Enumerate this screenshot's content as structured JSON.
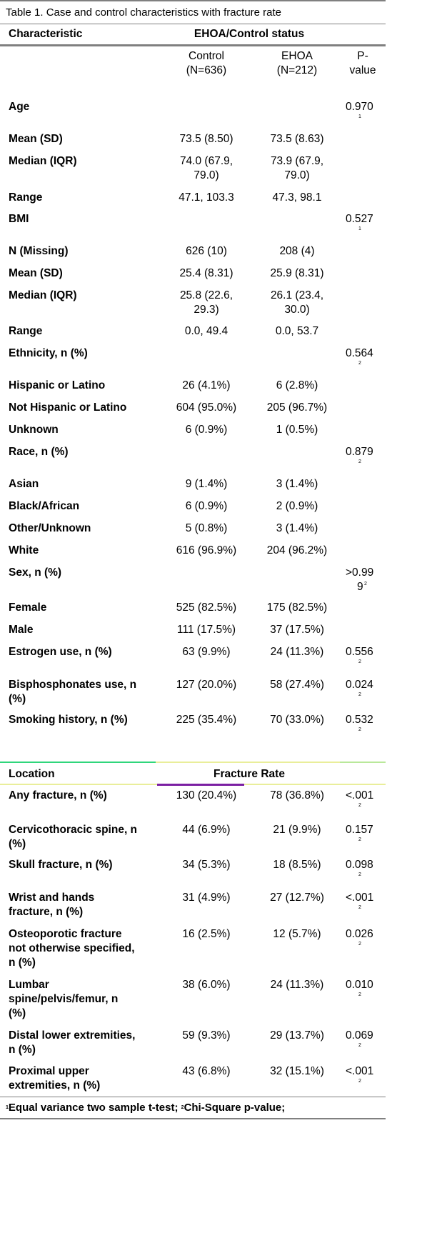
{
  "caption": "Table 1. Case and control characteristics with fracture rate",
  "header": {
    "characteristic": "Characteristic",
    "status": "EHOA/Control status",
    "control_line1": "Control",
    "control_line2": "(N=636)",
    "ehoa_line1": "EHOA",
    "ehoa_line2": "(N=212)",
    "p_line1": "P-",
    "p_line2": "value"
  },
  "sections": {
    "age": {
      "label": "Age",
      "p": "0.970",
      "note": "1"
    },
    "age_mean": {
      "label": "Mean (SD)",
      "control": "73.5 (8.50)",
      "ehoa": "73.5 (8.63)"
    },
    "age_median": {
      "label": "Median (IQR)",
      "control1": "74.0 (67.9,",
      "control2": "79.0)",
      "ehoa1": "73.9 (67.9,",
      "ehoa2": "79.0)"
    },
    "age_range": {
      "label": "Range",
      "control": "47.1, 103.3",
      "ehoa": "47.3, 98.1"
    },
    "bmi": {
      "label": "BMI",
      "p": "0.527",
      "note": "1"
    },
    "bmi_n": {
      "label": "N (Missing)",
      "control": "626 (10)",
      "ehoa": "208 (4)"
    },
    "bmi_mean": {
      "label": "Mean (SD)",
      "control": "25.4 (8.31)",
      "ehoa": "25.9 (8.31)"
    },
    "bmi_median": {
      "label": "Median (IQR)",
      "control1": "25.8 (22.6,",
      "control2": "29.3)",
      "ehoa1": "26.1 (23.4,",
      "ehoa2": "30.0)"
    },
    "bmi_range": {
      "label": "Range",
      "control": "0.0, 49.4",
      "ehoa": "0.0, 53.7"
    },
    "ethnicity": {
      "label": "Ethnicity, n (%)",
      "p": "0.564",
      "note": "2"
    },
    "eth_hisp": {
      "label": "Hispanic or Latino",
      "control": "26 (4.1%)",
      "ehoa": "6 (2.8%)"
    },
    "eth_nothisp": {
      "label": "Not Hispanic or Latino",
      "control": "604 (95.0%)",
      "ehoa": "205 (96.7%)"
    },
    "eth_unknown": {
      "label": "Unknown",
      "control": "6 (0.9%)",
      "ehoa": "1 (0.5%)"
    },
    "race": {
      "label": "Race, n (%)",
      "p": "0.879",
      "note": "2"
    },
    "race_asian": {
      "label": "Asian",
      "control": "9 (1.4%)",
      "ehoa": "3 (1.4%)"
    },
    "race_black": {
      "label": "Black/African",
      "control": "6 (0.9%)",
      "ehoa": "2 (0.9%)"
    },
    "race_other": {
      "label": "Other/Unknown",
      "control": "5 (0.8%)",
      "ehoa": "3 (1.4%)"
    },
    "race_white": {
      "label": "White",
      "control": "616 (96.9%)",
      "ehoa": "204 (96.2%)"
    },
    "sex": {
      "label": "Sex, n (%)",
      "p1": ">0.99",
      "p2": "9",
      "note": "2"
    },
    "sex_female": {
      "label": "Female",
      "control": "525 (82.5%)",
      "ehoa": "175 (82.5%)"
    },
    "sex_male": {
      "label": "Male",
      "control": "111 (17.5%)",
      "ehoa": "37 (17.5%)"
    },
    "estrogen": {
      "label": "Estrogen use, n (%)",
      "control": "63 (9.9%)",
      "ehoa": "24 (11.3%)",
      "p": "0.556",
      "note": "2"
    },
    "bisph": {
      "label1": "Bisphosphonates use, n",
      "label2": "(%)",
      "control": "127 (20.0%)",
      "ehoa": "58 (27.4%)",
      "p": "0.024",
      "note": "2"
    },
    "smoking": {
      "label": "Smoking history, n (%)",
      "control": "225 (35.4%)",
      "ehoa": "70 (33.0%)",
      "p": "0.532",
      "note": "2"
    }
  },
  "fracture_header": {
    "location": "Location",
    "rate": "Fracture Rate"
  },
  "fractures": {
    "any": {
      "label1": "Any fracture, n (%)",
      "control": "130 (20.4%)",
      "ehoa": "78 (36.8%)",
      "p": "<.001",
      "note": "2"
    },
    "cervico": {
      "label1": "Cervicothoracic spine, n",
      "label2": "(%)",
      "control": "44 (6.9%)",
      "ehoa": "21 (9.9%)",
      "p": "0.157",
      "note": "2"
    },
    "skull": {
      "label1": "Skull fracture, n (%)",
      "control": "34 (5.3%)",
      "ehoa": "18 (8.5%)",
      "p": "0.098",
      "note": "2"
    },
    "wrist": {
      "label1": "Wrist and hands",
      "label2": "fracture, n (%)",
      "control": "31 (4.9%)",
      "ehoa": "27 (12.7%)",
      "p": "<.001",
      "note": "2"
    },
    "osteo": {
      "label1": "Osteoporotic fracture",
      "label2": "not otherwise specified,",
      "label3": "n (%)",
      "control": "16 (2.5%)",
      "ehoa": "12 (5.7%)",
      "p": "0.026",
      "note": "2"
    },
    "lumbar": {
      "label1": "Lumbar",
      "label2": "spine/pelvis/femur, n",
      "label3": "(%)",
      "control": "38 (6.0%)",
      "ehoa": "24 (11.3%)",
      "p": "0.010",
      "note": "2"
    },
    "distal": {
      "label1": "Distal lower extremities,",
      "label2": "n (%)",
      "control": "59 (9.3%)",
      "ehoa": "29 (13.7%)",
      "p": "0.069",
      "note": "2"
    },
    "proximal": {
      "label1": "Proximal upper",
      "label2": "extremities, n (%)",
      "control": "43 (6.8%)",
      "ehoa": "32 (15.1%)",
      "p": "<.001",
      "note": "2"
    }
  },
  "footnote": {
    "sup1": "1",
    "text1": "Equal variance two sample t-test; ",
    "sup2": "2",
    "text2": "Chi-Square p-value;"
  }
}
